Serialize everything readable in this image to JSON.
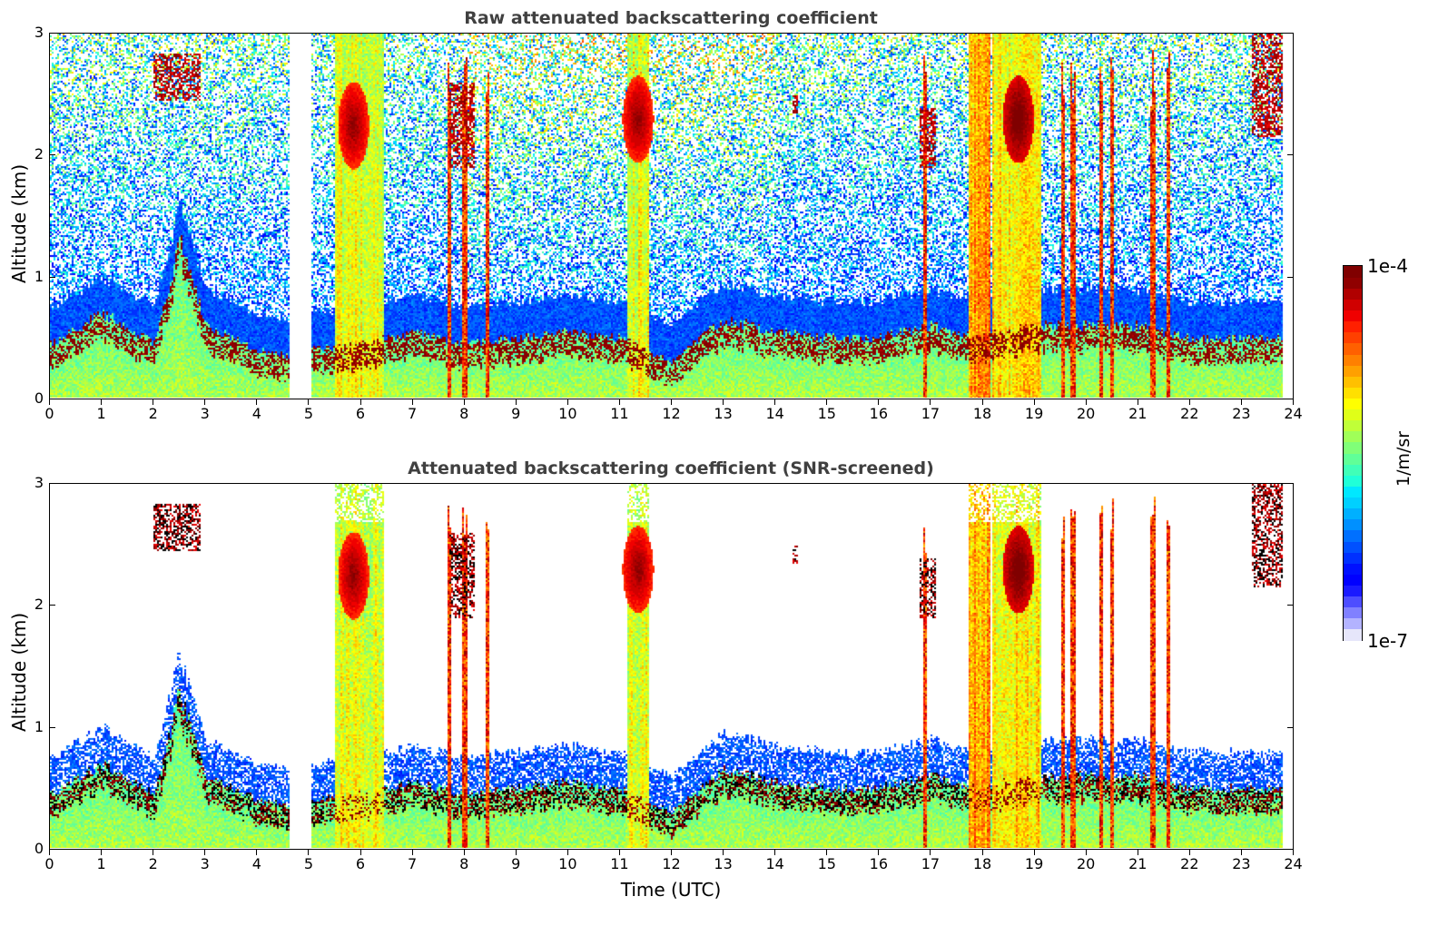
{
  "chart_data": [
    {
      "type": "heatmap",
      "title": "Raw attenuated backscattering coefficient",
      "xlabel": "",
      "ylabel": "Altitude (km)",
      "xlim": [
        0,
        24
      ],
      "ylim": [
        0,
        3
      ],
      "xticks": [
        "0",
        "1",
        "2",
        "3",
        "4",
        "5",
        "6",
        "7",
        "8",
        "9",
        "10",
        "11",
        "12",
        "13",
        "14",
        "15",
        "16",
        "17",
        "18",
        "19",
        "20",
        "21",
        "22",
        "23",
        "24"
      ],
      "yticks": [
        "0",
        "1",
        "2",
        "3"
      ],
      "screened": false,
      "data_gaps_hours": [
        [
          4.6,
          5.05
        ],
        [
          23.8,
          24
        ]
      ],
      "features": [
        {
          "kind": "boundary_layer_top_km",
          "x": [
            0,
            1,
            2,
            2.5,
            3,
            4,
            4.6,
            5.05,
            6,
            7,
            8,
            9,
            10,
            11,
            12,
            13,
            14,
            15,
            16,
            17,
            18,
            19,
            20,
            21,
            22,
            23,
            23.8
          ],
          "y": [
            0.45,
            0.7,
            0.45,
            1.3,
            0.6,
            0.4,
            0.35,
            0.4,
            0.45,
            0.55,
            0.45,
            0.5,
            0.55,
            0.5,
            0.3,
            0.65,
            0.55,
            0.5,
            0.5,
            0.6,
            0.5,
            0.6,
            0.6,
            0.6,
            0.5,
            0.5,
            0.5
          ]
        },
        {
          "kind": "precipitation_column",
          "x0": 5.5,
          "x1": 6.45,
          "intensity": 0.75
        },
        {
          "kind": "precipitation_column",
          "x0": 11.15,
          "x1": 11.55,
          "intensity": 0.75
        },
        {
          "kind": "precipitation_column",
          "x0": 18.2,
          "x1": 19.15,
          "intensity": 0.8
        },
        {
          "kind": "precipitation_column",
          "x0": 17.75,
          "x1": 18.15,
          "intensity": 0.9
        },
        {
          "kind": "thin_column",
          "x": [
            7.7,
            8.0,
            8.45,
            16.9,
            19.55,
            19.75,
            20.3,
            20.5,
            21.3,
            21.6
          ]
        },
        {
          "kind": "cloud_core",
          "x": 5.85,
          "y": 2.25,
          "intensity": 0.95
        },
        {
          "kind": "cloud_core",
          "x": 11.35,
          "y": 2.3,
          "intensity": 0.95
        },
        {
          "kind": "cloud_core",
          "x": 18.7,
          "y": 2.3,
          "intensity": 1.0
        },
        {
          "kind": "elevated_cloud",
          "x0": 2.0,
          "x1": 2.9,
          "y0": 2.45,
          "y1": 2.85
        },
        {
          "kind": "elevated_cloud",
          "x0": 7.7,
          "x1": 8.2,
          "y0": 1.9,
          "y1": 2.6
        },
        {
          "kind": "elevated_cloud",
          "x0": 16.8,
          "x1": 17.1,
          "y0": 1.9,
          "y1": 2.4
        },
        {
          "kind": "elevated_cloud",
          "x0": 23.2,
          "x1": 23.8,
          "y0": 2.15,
          "y1": 3.0
        },
        {
          "kind": "elevated_cloud",
          "x0": 14.35,
          "x1": 14.45,
          "y0": 2.35,
          "y1": 2.5
        }
      ]
    },
    {
      "type": "heatmap",
      "title": "Attenuated backscattering coefficient (SNR-screened)",
      "xlabel": "Time (UTC)",
      "ylabel": "Altitude (km)",
      "xlim": [
        0,
        24
      ],
      "ylim": [
        0,
        3
      ],
      "xticks": [
        "0",
        "1",
        "2",
        "3",
        "4",
        "5",
        "6",
        "7",
        "8",
        "9",
        "10",
        "11",
        "12",
        "13",
        "14",
        "15",
        "16",
        "17",
        "18",
        "19",
        "20",
        "21",
        "22",
        "23",
        "24"
      ],
      "yticks": [
        "0",
        "1",
        "2",
        "3"
      ],
      "screened": true
    }
  ],
  "colorbar": {
    "label": "1/m/sr",
    "max_label": "1e-4",
    "min_label": "1e-7",
    "scale": "log",
    "colors": [
      "#e6e6fa",
      "#b3b3ff",
      "#8080ff",
      "#4d4dff",
      "#1a1aff",
      "#0000ff",
      "#0010ff",
      "#0030ff",
      "#0050ff",
      "#0070ff",
      "#0090ff",
      "#00b0ff",
      "#00d0ff",
      "#00e8ff",
      "#20ffd8",
      "#40ffb8",
      "#60ff98",
      "#80ff78",
      "#a0ff58",
      "#c0ff38",
      "#e0ff18",
      "#ffff00",
      "#ffe000",
      "#ffc000",
      "#ffa000",
      "#ff8000",
      "#ff6000",
      "#ff4000",
      "#ff2000",
      "#f00000",
      "#d00000",
      "#b00000",
      "#900000",
      "#800000"
    ]
  }
}
